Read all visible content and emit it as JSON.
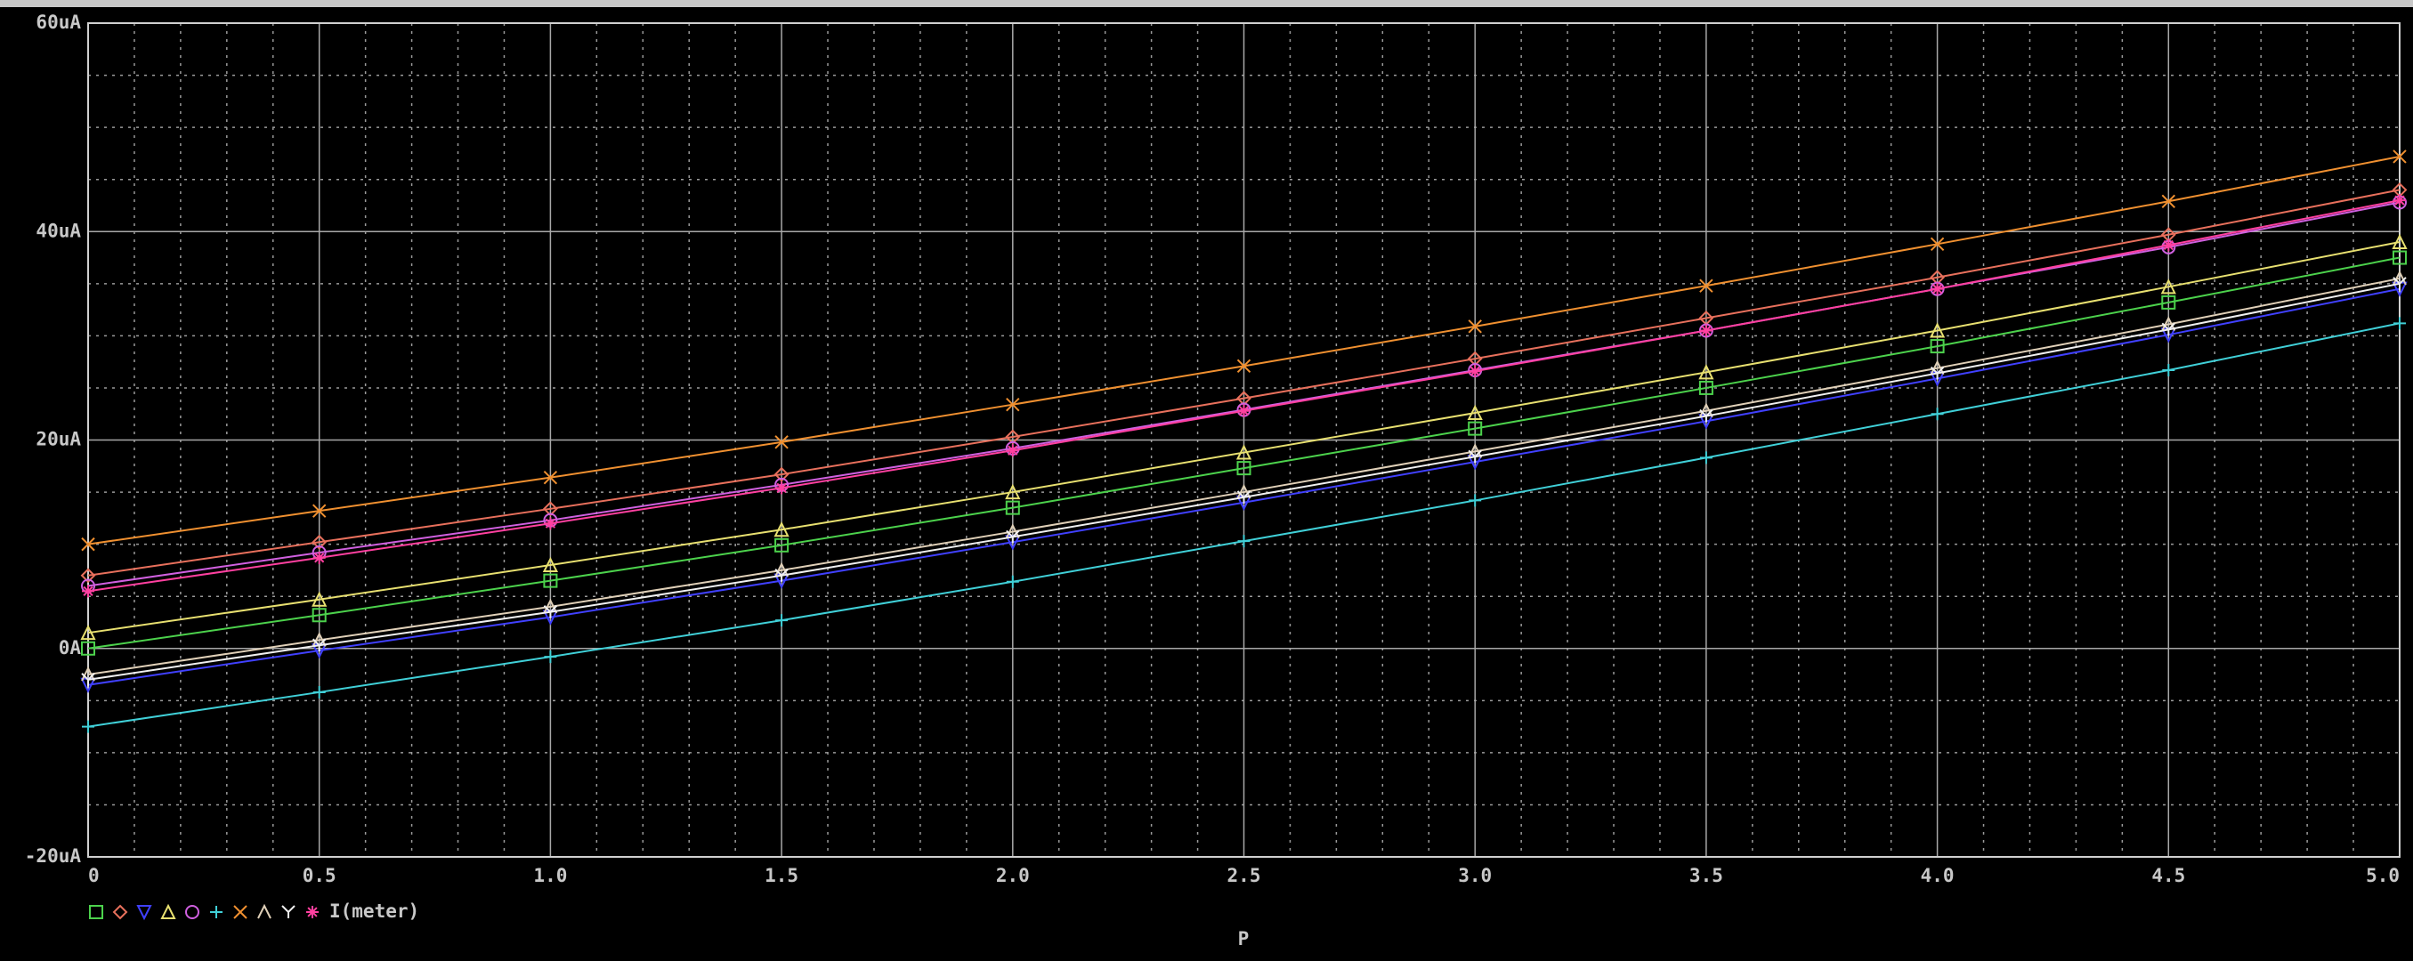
{
  "chart_data": {
    "type": "line",
    "x_label": "P",
    "trace_label": "I(meter)",
    "x": [
      0,
      0.5,
      1,
      1.5,
      2,
      2.5,
      3,
      3.5,
      4,
      4.5,
      5
    ],
    "series": [
      {
        "color": "#4cd24c",
        "marker": "square",
        "values": [
          0,
          3.2,
          6.5,
          9.9,
          13.5,
          17.3,
          21.1,
          25.0,
          29.0,
          33.2,
          37.5
        ]
      },
      {
        "color": "#e8705c",
        "marker": "diamond",
        "values": [
          7,
          10.2,
          13.4,
          16.7,
          20.3,
          24.0,
          27.8,
          31.7,
          35.6,
          39.7,
          44.0
        ]
      },
      {
        "color": "#4040ff",
        "marker": "tri-down",
        "values": [
          -3.5,
          -0.2,
          3.0,
          6.5,
          10.2,
          14.0,
          17.9,
          21.8,
          25.9,
          30.1,
          34.5
        ]
      },
      {
        "color": "#e8e070",
        "marker": "tri-up",
        "values": [
          1.5,
          4.7,
          8.0,
          11.4,
          15.0,
          18.8,
          22.6,
          26.5,
          30.5,
          34.7,
          39.0
        ]
      },
      {
        "color": "#d060e0",
        "marker": "circle",
        "values": [
          6,
          9.2,
          12.3,
          15.7,
          19.2,
          22.9,
          26.7,
          30.5,
          34.5,
          38.5,
          42.8
        ]
      },
      {
        "color": "#40d0d8",
        "marker": "plus",
        "values": [
          -7.5,
          -4.2,
          -0.8,
          2.7,
          6.4,
          10.3,
          14.2,
          18.3,
          22.5,
          26.7,
          31.2
        ]
      },
      {
        "color": "#f09030",
        "marker": "cross",
        "values": [
          10,
          13.2,
          16.4,
          19.8,
          23.4,
          27.1,
          30.9,
          34.8,
          38.8,
          42.9,
          47.2
        ]
      },
      {
        "color": "#e0d0b8",
        "marker": "lambda",
        "values": [
          -2.5,
          0.8,
          4.0,
          7.5,
          11.2,
          15.0,
          18.9,
          22.8,
          26.9,
          31.1,
          35.5
        ]
      },
      {
        "color": "#f0f0f0",
        "marker": "y",
        "values": [
          -3,
          0.3,
          3.5,
          7.0,
          10.7,
          14.5,
          18.4,
          22.3,
          26.4,
          30.6,
          35.0
        ]
      },
      {
        "color": "#ff40a0",
        "marker": "star",
        "values": [
          5.5,
          8.7,
          12.0,
          15.4,
          19.0,
          22.8,
          26.6,
          30.5,
          34.5,
          38.7,
          43.0
        ]
      }
    ],
    "xlim": [
      0,
      5
    ],
    "xticks": [
      0,
      0.5,
      {
        "value": 1,
        "label": "1.0"
      },
      1.5,
      {
        "value": 2,
        "label": "2.0"
      },
      2.5,
      {
        "value": 3,
        "label": "3.0"
      },
      3.5,
      {
        "value": 4,
        "label": "4.0"
      },
      4.5,
      {
        "value": 5,
        "label": "5.0"
      }
    ],
    "ylim": [
      -20,
      60
    ],
    "yticks": [
      {
        "value": -20,
        "label": "-20uA"
      },
      {
        "value": 0,
        "label": "0A"
      },
      {
        "value": 20,
        "label": "20uA"
      },
      {
        "value": 40,
        "label": "40uA"
      },
      {
        "value": 60,
        "label": "60uA"
      }
    ],
    "grid": true
  }
}
